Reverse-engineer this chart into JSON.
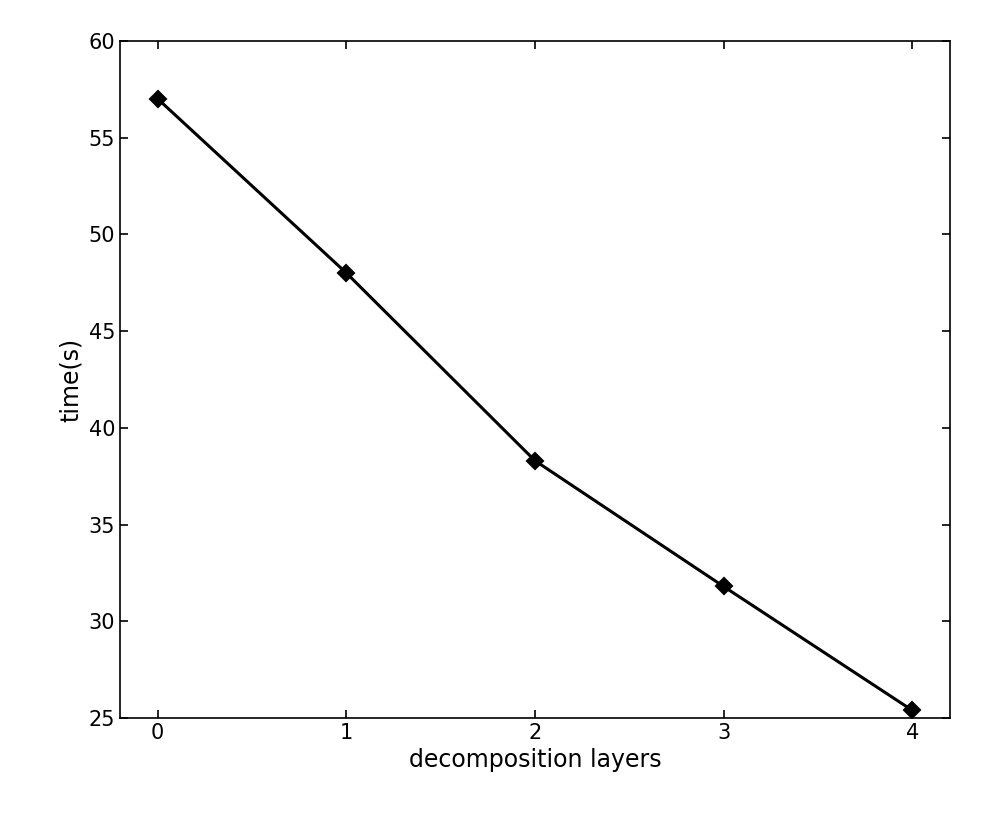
{
  "x": [
    0,
    1,
    2,
    3,
    4
  ],
  "y": [
    57.0,
    48.0,
    38.3,
    31.8,
    25.4
  ],
  "line_color": "#000000",
  "marker": "D",
  "marker_size": 8,
  "marker_facecolor": "#000000",
  "marker_edgecolor": "#000000",
  "linewidth": 2.2,
  "xlabel": "decomposition layers",
  "ylabel": "time(s)",
  "xlim": [
    -0.2,
    4.2
  ],
  "ylim": [
    25,
    60
  ],
  "yticks": [
    25,
    30,
    35,
    40,
    45,
    50,
    55,
    60
  ],
  "xticks": [
    0,
    1,
    2,
    3,
    4
  ],
  "xlabel_fontsize": 17,
  "ylabel_fontsize": 17,
  "tick_fontsize": 15,
  "background_color": "#ffffff",
  "spine_color": "#000000",
  "tick_direction": "in"
}
